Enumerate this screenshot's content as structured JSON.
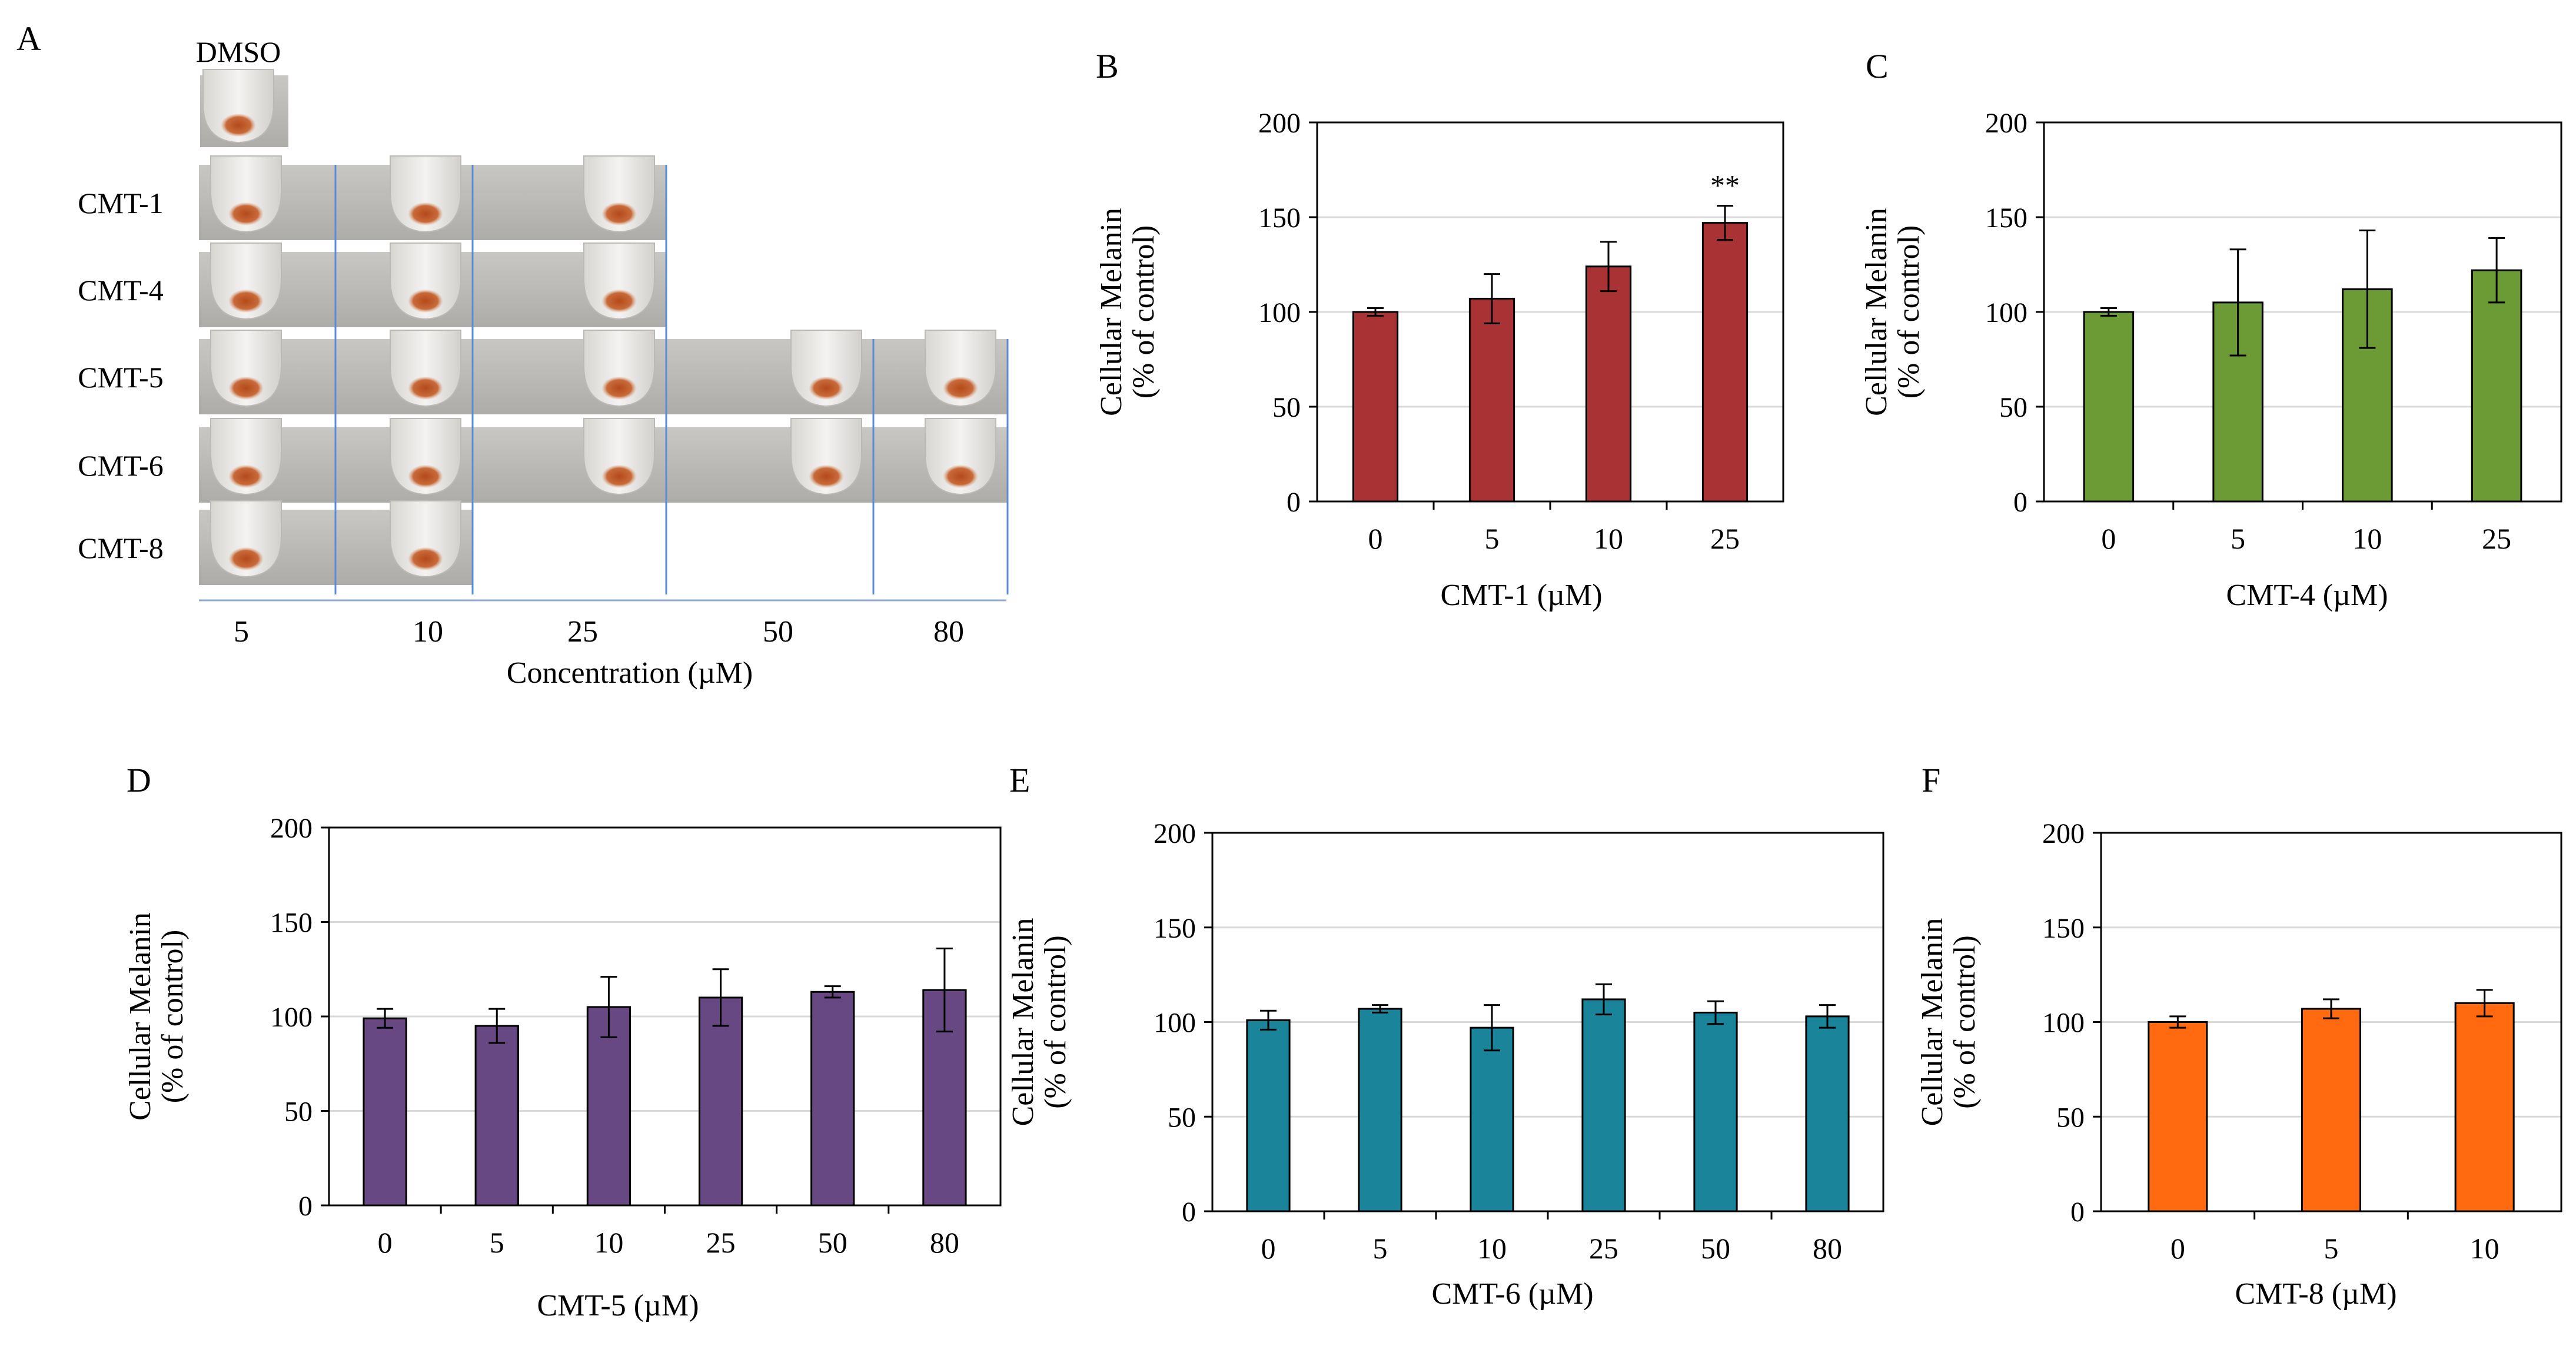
{
  "panelA": {
    "letter": "A",
    "dmso_label": "DMSO",
    "row_labels": [
      "CMT-1",
      "CMT-4",
      "CMT-5",
      "CMT-6",
      "CMT-8"
    ],
    "concentrations": [
      "5",
      "10",
      "25",
      "50",
      "80"
    ],
    "axis_label": "Concentration (µM)",
    "tubes_per_row": [
      3,
      3,
      5,
      5,
      2
    ]
  },
  "chart_data": [
    {
      "panel": "B",
      "type": "bar",
      "categories": [
        "0",
        "5",
        "10",
        "25"
      ],
      "values": [
        100,
        107,
        124,
        147
      ],
      "errors": [
        2,
        13,
        13,
        9
      ],
      "annotations": [
        "",
        "",
        "",
        "**"
      ],
      "xlabel": "CMT-1 (µM)",
      "ylabel": "Cellular Melanin",
      "ylabel2": "(% of control)",
      "ylim": [
        0,
        200
      ],
      "yticks": [
        "0",
        "50",
        "100",
        "150",
        "200"
      ],
      "color": "#a93234",
      "grid": true
    },
    {
      "panel": "C",
      "type": "bar",
      "categories": [
        "0",
        "5",
        "10",
        "25"
      ],
      "values": [
        100,
        105,
        112,
        122
      ],
      "errors": [
        2,
        28,
        31,
        17
      ],
      "annotations": [
        "",
        "",
        "",
        ""
      ],
      "xlabel": "CMT-4 (µM)",
      "ylabel": "Cellular Melanin",
      "ylabel2": "(% of control)",
      "ylim": [
        0,
        200
      ],
      "yticks": [
        "0",
        "50",
        "100",
        "150",
        "200"
      ],
      "color": "#6c9a35",
      "grid": true
    },
    {
      "panel": "D",
      "type": "bar",
      "categories": [
        "0",
        "5",
        "10",
        "25",
        "50",
        "80"
      ],
      "values": [
        99,
        95,
        105,
        110,
        113,
        114
      ],
      "errors": [
        5,
        9,
        16,
        15,
        3,
        22
      ],
      "annotations": [
        "",
        "",
        "",
        "",
        "",
        ""
      ],
      "xlabel": "CMT-5 (µM)",
      "ylabel": "Cellular Melanin",
      "ylabel2": "(% of control)",
      "ylim": [
        0,
        200
      ],
      "yticks": [
        "0",
        "50",
        "100",
        "150",
        "200"
      ],
      "color": "#684883",
      "grid": true
    },
    {
      "panel": "E",
      "type": "bar",
      "categories": [
        "0",
        "5",
        "10",
        "25",
        "50",
        "80"
      ],
      "values": [
        101,
        107,
        97,
        112,
        105,
        103
      ],
      "errors": [
        5,
        2,
        12,
        8,
        6,
        6
      ],
      "annotations": [
        "",
        "",
        "",
        "",
        "",
        ""
      ],
      "xlabel": "CMT-6 (µM)",
      "ylabel": "Cellular Melanin",
      "ylabel2": "(% of control)",
      "ylim": [
        0,
        200
      ],
      "yticks": [
        "0",
        "50",
        "100",
        "150",
        "200"
      ],
      "color": "#1a849a",
      "grid": true
    },
    {
      "panel": "F",
      "type": "bar",
      "categories": [
        "0",
        "5",
        "10"
      ],
      "values": [
        100,
        107,
        110
      ],
      "errors": [
        3,
        5,
        7
      ],
      "annotations": [
        "",
        "",
        ""
      ],
      "xlabel": "CMT-8 (µM)",
      "ylabel": "Cellular Melanin",
      "ylabel2": "(% of control)",
      "ylim": [
        0,
        200
      ],
      "yticks": [
        "0",
        "50",
        "100",
        "150",
        "200"
      ],
      "color": "#ff6a10",
      "grid": true
    }
  ]
}
